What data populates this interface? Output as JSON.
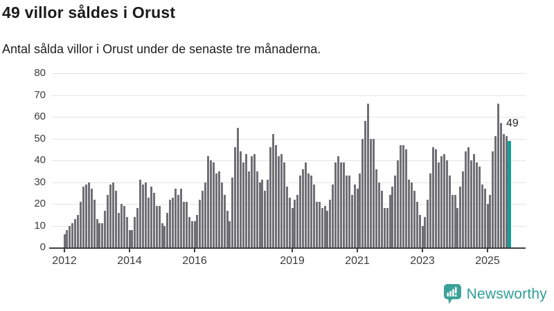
{
  "header": {
    "title": "49 villor såldes i Orust",
    "subtitle": "Antal sålda villor i Orust under de senaste tre månaderna."
  },
  "annotation": {
    "last_value_label": "49"
  },
  "footer": {
    "brand": "Newsworthy",
    "brand_color": "#2f9e97"
  },
  "chart_data": {
    "type": "bar",
    "title": "49 villor såldes i Orust",
    "subtitle": "Antal sålda villor i Orust under de senaste tre månaderna.",
    "xlabel": "",
    "ylabel": "",
    "x_start_month": "2012-01",
    "x_end_month": "2025-09",
    "frequency": "monthly",
    "ylim": [
      0,
      80
    ],
    "yticks": [
      0,
      10,
      20,
      30,
      40,
      50,
      60,
      70,
      80
    ],
    "grid": "horizontal",
    "legend": "none",
    "bar_color": "#6f6f75",
    "highlight_color": "#169e98",
    "highlight_index_from_end": 1,
    "highlighted_value": 49,
    "xtick_labels": [
      "2012",
      "2014",
      "2016",
      "2019",
      "2021",
      "2023",
      "2025"
    ],
    "xtick_month_indices": [
      0,
      24,
      48,
      84,
      108,
      132,
      156
    ],
    "values": [
      6,
      8,
      10,
      11,
      13,
      15,
      21,
      28,
      29,
      30,
      27,
      22,
      13,
      11,
      11,
      17,
      24,
      29,
      30,
      26,
      16,
      20,
      19,
      14,
      8,
      8,
      14,
      18,
      31,
      29,
      30,
      23,
      28,
      25,
      19,
      19,
      11,
      10,
      16,
      22,
      23,
      27,
      24,
      27,
      21,
      21,
      14,
      12,
      12,
      15,
      22,
      26,
      30,
      42,
      40,
      39,
      34,
      35,
      30,
      24,
      17,
      12,
      32,
      46,
      55,
      44,
      39,
      43,
      35,
      42,
      43,
      35,
      30,
      31,
      26,
      31,
      46,
      52,
      47,
      42,
      43,
      39,
      28,
      23,
      18,
      22,
      24,
      33,
      36,
      39,
      34,
      33,
      29,
      21,
      21,
      18,
      19,
      17,
      22,
      29,
      39,
      42,
      39,
      39,
      33,
      33,
      24,
      29,
      27,
      34,
      50,
      58,
      66,
      50,
      50,
      36,
      30,
      26,
      18,
      18,
      24,
      28,
      33,
      40,
      47,
      47,
      45,
      31,
      30,
      26,
      21,
      15,
      10,
      14,
      22,
      34,
      46,
      45,
      39,
      42,
      43,
      40,
      33,
      24,
      24,
      18,
      28,
      35,
      44,
      46,
      40,
      43,
      39,
      37,
      29,
      27,
      20,
      24,
      44,
      51,
      66,
      57,
      52,
      51,
      49
    ]
  }
}
